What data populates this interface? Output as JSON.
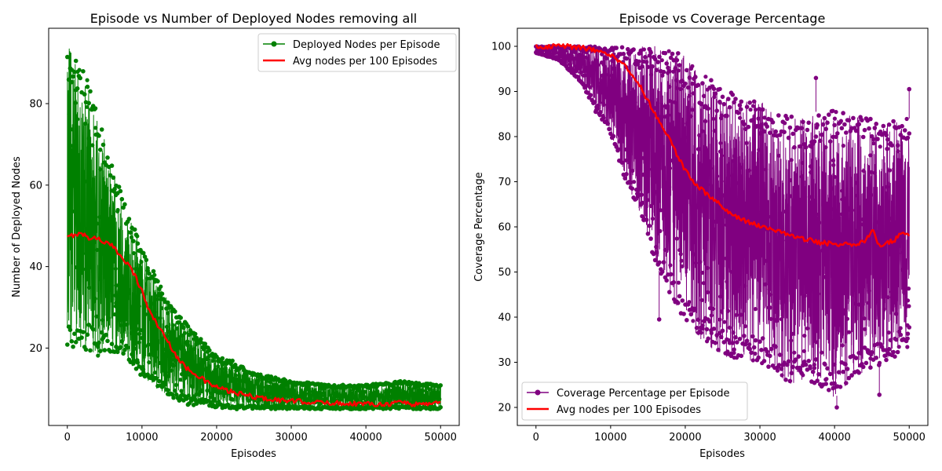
{
  "figure": {
    "panels": 2
  },
  "chart_data": [
    {
      "type": "line",
      "title": "Episode vs Number of Deployed Nodes removing all",
      "xlabel": "Episodes",
      "ylabel": "Number of Deployed Nodes",
      "xlim": [
        -2500,
        52500
      ],
      "ylim": [
        1,
        98.5
      ],
      "xticks": [
        0,
        10000,
        20000,
        30000,
        40000,
        50000
      ],
      "yticks": [
        20,
        40,
        60,
        80
      ],
      "grid": false,
      "legend_position": "top-right",
      "series": [
        {
          "name": "Deployed Nodes per Episode",
          "color": "#008000",
          "marker": "circle",
          "style": "noisy-band",
          "envelope": [
            {
              "x": 0,
              "lo": 20,
              "hi": 95
            },
            {
              "x": 2000,
              "lo": 20,
              "hi": 91
            },
            {
              "x": 4000,
              "lo": 18,
              "hi": 78
            },
            {
              "x": 6000,
              "lo": 19,
              "hi": 65
            },
            {
              "x": 8000,
              "lo": 17,
              "hi": 54
            },
            {
              "x": 10000,
              "lo": 13,
              "hi": 45
            },
            {
              "x": 12000,
              "lo": 10,
              "hi": 37
            },
            {
              "x": 14000,
              "lo": 8,
              "hi": 30
            },
            {
              "x": 16000,
              "lo": 6,
              "hi": 26
            },
            {
              "x": 18000,
              "lo": 6,
              "hi": 22
            },
            {
              "x": 20000,
              "lo": 5,
              "hi": 18
            },
            {
              "x": 22000,
              "lo": 5,
              "hi": 17
            },
            {
              "x": 25000,
              "lo": 5,
              "hi": 14
            },
            {
              "x": 30000,
              "lo": 5,
              "hi": 12
            },
            {
              "x": 35000,
              "lo": 5,
              "hi": 11
            },
            {
              "x": 40000,
              "lo": 5,
              "hi": 11
            },
            {
              "x": 45000,
              "lo": 5,
              "hi": 12
            },
            {
              "x": 50000,
              "lo": 5,
              "hi": 11
            }
          ]
        },
        {
          "name": "Avg nodes per 100 Episodes",
          "color": "#ff0000",
          "style": "line",
          "x": [
            0,
            1000,
            2000,
            3000,
            4000,
            5000,
            6000,
            7000,
            8000,
            9000,
            10000,
            11000,
            12000,
            13000,
            14000,
            15000,
            16000,
            17000,
            18000,
            19000,
            20000,
            22000,
            24000,
            26000,
            28000,
            30000,
            32000,
            34000,
            36000,
            38000,
            40000,
            42000,
            43500,
            44500,
            45500,
            46000,
            47000,
            48000,
            49000,
            50000
          ],
          "y": [
            47,
            48,
            48,
            47,
            47,
            46,
            45,
            43,
            41,
            38,
            34,
            29,
            26,
            23,
            20,
            17,
            15,
            14,
            12.5,
            11.3,
            10.4,
            9.2,
            8.4,
            7.7,
            7.3,
            7.0,
            6.8,
            6.6,
            6.5,
            6.4,
            6.3,
            6.3,
            6.3,
            7.0,
            6.5,
            6.1,
            6.4,
            6.2,
            6.7,
            6.5
          ]
        }
      ]
    },
    {
      "type": "line",
      "title": "Episode vs Coverage Percentage",
      "xlabel": "Episodes",
      "ylabel": "Coverage Percentage",
      "xlim": [
        -2500,
        52500
      ],
      "ylim": [
        16,
        104
      ],
      "xticks": [
        0,
        10000,
        20000,
        30000,
        40000,
        50000
      ],
      "yticks": [
        20,
        30,
        40,
        50,
        60,
        70,
        80,
        90,
        100
      ],
      "grid": false,
      "legend_position": "bottom-left",
      "series": [
        {
          "name": "Coverage Percentage per Episode",
          "color": "#800080",
          "marker": "circle",
          "style": "noisy-band",
          "envelope": [
            {
              "x": 0,
              "lo": 98.5,
              "hi": 100
            },
            {
              "x": 3000,
              "lo": 97,
              "hi": 100
            },
            {
              "x": 6000,
              "lo": 92,
              "hi": 100
            },
            {
              "x": 8000,
              "lo": 86,
              "hi": 100
            },
            {
              "x": 10000,
              "lo": 80,
              "hi": 100
            },
            {
              "x": 12000,
              "lo": 70,
              "hi": 100
            },
            {
              "x": 14000,
              "lo": 63,
              "hi": 100
            },
            {
              "x": 16000,
              "lo": 52,
              "hi": 100
            },
            {
              "x": 18000,
              "lo": 45,
              "hi": 99
            },
            {
              "x": 20000,
              "lo": 39,
              "hi": 98
            },
            {
              "x": 22000,
              "lo": 35,
              "hi": 94
            },
            {
              "x": 24000,
              "lo": 32,
              "hi": 92
            },
            {
              "x": 26000,
              "lo": 31,
              "hi": 90
            },
            {
              "x": 28000,
              "lo": 30,
              "hi": 88
            },
            {
              "x": 30000,
              "lo": 30,
              "hi": 88
            },
            {
              "x": 32000,
              "lo": 28,
              "hi": 85
            },
            {
              "x": 34000,
              "lo": 25,
              "hi": 85
            },
            {
              "x": 36000,
              "lo": 26,
              "hi": 84
            },
            {
              "x": 38000,
              "lo": 25,
              "hi": 86
            },
            {
              "x": 40000,
              "lo": 22,
              "hi": 86
            },
            {
              "x": 42000,
              "lo": 26,
              "hi": 85
            },
            {
              "x": 44000,
              "lo": 28,
              "hi": 86
            },
            {
              "x": 46000,
              "lo": 29,
              "hi": 84
            },
            {
              "x": 48000,
              "lo": 31,
              "hi": 84
            },
            {
              "x": 50000,
              "lo": 33,
              "hi": 84
            }
          ],
          "outliers": [
            {
              "x": 8000,
              "y": 85.5
            },
            {
              "x": 16500,
              "y": 39.5
            },
            {
              "x": 37500,
              "y": 93
            },
            {
              "x": 40300,
              "y": 20
            },
            {
              "x": 46000,
              "y": 22.8
            },
            {
              "x": 50000,
              "y": 90.5
            }
          ]
        },
        {
          "name": "Avg nodes per 100 Episodes",
          "color": "#ff0000",
          "style": "line",
          "x": [
            0,
            2000,
            4000,
            6000,
            8000,
            9000,
            10000,
            11000,
            12000,
            13000,
            14000,
            15000,
            16000,
            17000,
            18000,
            19000,
            20000,
            21000,
            22000,
            23000,
            24000,
            25000,
            26000,
            27000,
            28000,
            30000,
            32000,
            34000,
            36000,
            38000,
            40000,
            42000,
            44000,
            45000,
            46000,
            47000,
            48000,
            49000,
            50000
          ],
          "y": [
            100,
            100,
            100,
            99.7,
            99.2,
            98.7,
            98,
            97,
            95.5,
            93.5,
            91,
            88,
            85,
            82,
            79,
            75.5,
            72.5,
            70,
            68.5,
            67,
            66,
            64.5,
            63,
            62,
            61.3,
            60.3,
            59.2,
            58,
            57.3,
            56.5,
            56.2,
            56,
            56.6,
            59.5,
            56,
            56.5,
            57,
            59,
            58
          ]
        }
      ]
    }
  ]
}
